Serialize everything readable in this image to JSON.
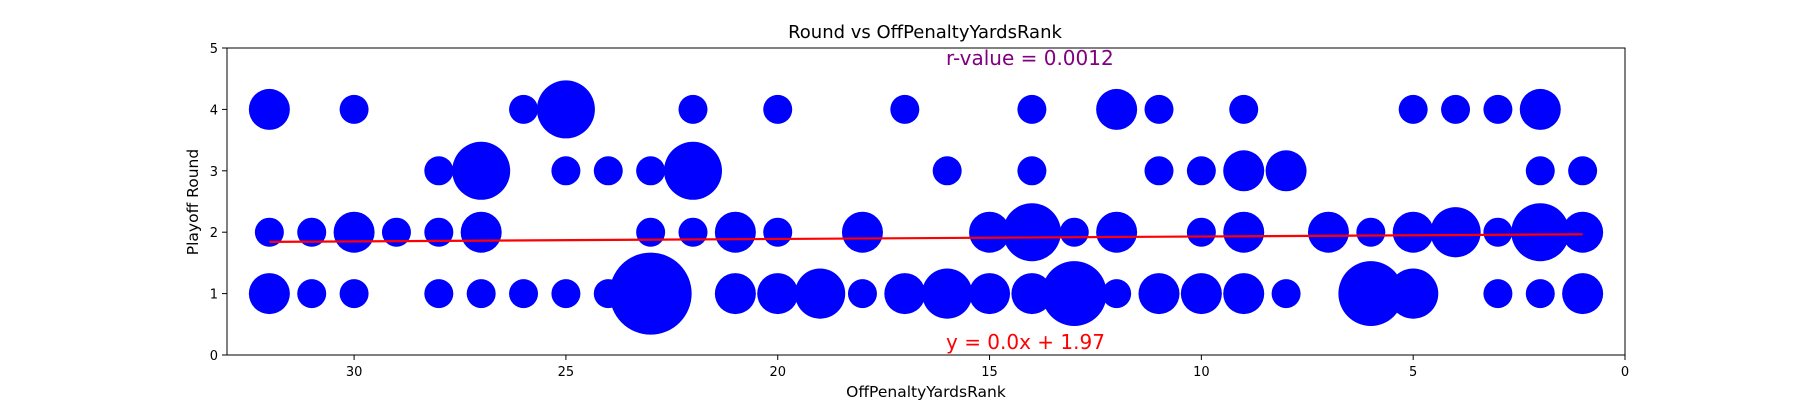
{
  "chart_data": {
    "type": "scatter",
    "title": "Round vs OffPenaltyYardsRank",
    "xlabel": "OffPenaltyYardsRank",
    "ylabel": "Playoff Round",
    "xlim": [
      33,
      0
    ],
    "ylim": [
      0,
      5
    ],
    "x_ticks": [
      30,
      25,
      20,
      15,
      10,
      5,
      0
    ],
    "y_ticks": [
      0,
      1,
      2,
      3,
      4,
      5
    ],
    "grid": false,
    "legend": "none",
    "point_color": "#0000ff",
    "fit_color": "#ff0000",
    "annotation_color_r": "#800080",
    "annotations": {
      "r_value": "r-value = 0.0012",
      "equation": "y = 0.0x + 1.97"
    },
    "fit_line": {
      "slope": -0.004,
      "intercept": 1.97,
      "x_range": [
        32,
        1
      ]
    },
    "points": [
      {
        "x": 32,
        "y": 4,
        "size": 2
      },
      {
        "x": 30,
        "y": 4,
        "size": 1
      },
      {
        "x": 26,
        "y": 4,
        "size": 1
      },
      {
        "x": 25,
        "y": 4,
        "size": 4
      },
      {
        "x": 22,
        "y": 4,
        "size": 1
      },
      {
        "x": 20,
        "y": 4,
        "size": 1
      },
      {
        "x": 17,
        "y": 4,
        "size": 1
      },
      {
        "x": 14,
        "y": 4,
        "size": 1
      },
      {
        "x": 12,
        "y": 4,
        "size": 2
      },
      {
        "x": 11,
        "y": 4,
        "size": 1
      },
      {
        "x": 9,
        "y": 4,
        "size": 1
      },
      {
        "x": 5,
        "y": 4,
        "size": 1
      },
      {
        "x": 4,
        "y": 4,
        "size": 1
      },
      {
        "x": 3,
        "y": 4,
        "size": 1
      },
      {
        "x": 2,
        "y": 4,
        "size": 2
      },
      {
        "x": 28,
        "y": 3,
        "size": 1
      },
      {
        "x": 27,
        "y": 3,
        "size": 4
      },
      {
        "x": 25,
        "y": 3,
        "size": 1
      },
      {
        "x": 24,
        "y": 3,
        "size": 1
      },
      {
        "x": 23,
        "y": 3,
        "size": 1
      },
      {
        "x": 22,
        "y": 3,
        "size": 4
      },
      {
        "x": 16,
        "y": 3,
        "size": 1
      },
      {
        "x": 14,
        "y": 3,
        "size": 1
      },
      {
        "x": 11,
        "y": 3,
        "size": 1
      },
      {
        "x": 10,
        "y": 3,
        "size": 1
      },
      {
        "x": 9,
        "y": 3,
        "size": 2
      },
      {
        "x": 8,
        "y": 3,
        "size": 2
      },
      {
        "x": 2,
        "y": 3,
        "size": 1
      },
      {
        "x": 1,
        "y": 3,
        "size": 1
      },
      {
        "x": 32,
        "y": 2,
        "size": 1
      },
      {
        "x": 31,
        "y": 2,
        "size": 1
      },
      {
        "x": 30,
        "y": 2,
        "size": 2
      },
      {
        "x": 29,
        "y": 2,
        "size": 1
      },
      {
        "x": 28,
        "y": 2,
        "size": 1
      },
      {
        "x": 27,
        "y": 2,
        "size": 2
      },
      {
        "x": 23,
        "y": 2,
        "size": 1
      },
      {
        "x": 22,
        "y": 2,
        "size": 1
      },
      {
        "x": 21,
        "y": 2,
        "size": 2
      },
      {
        "x": 20,
        "y": 2,
        "size": 1
      },
      {
        "x": 18,
        "y": 2,
        "size": 2
      },
      {
        "x": 15,
        "y": 2,
        "size": 2
      },
      {
        "x": 14,
        "y": 2,
        "size": 4
      },
      {
        "x": 13,
        "y": 2,
        "size": 1
      },
      {
        "x": 12,
        "y": 2,
        "size": 2
      },
      {
        "x": 10,
        "y": 2,
        "size": 1
      },
      {
        "x": 9,
        "y": 2,
        "size": 2
      },
      {
        "x": 7,
        "y": 2,
        "size": 2
      },
      {
        "x": 6,
        "y": 2,
        "size": 1
      },
      {
        "x": 5,
        "y": 2,
        "size": 2
      },
      {
        "x": 4,
        "y": 2,
        "size": 3
      },
      {
        "x": 3,
        "y": 2,
        "size": 1
      },
      {
        "x": 2,
        "y": 2,
        "size": 4
      },
      {
        "x": 1,
        "y": 2,
        "size": 2
      },
      {
        "x": 32,
        "y": 1,
        "size": 2
      },
      {
        "x": 31,
        "y": 1,
        "size": 1
      },
      {
        "x": 30,
        "y": 1,
        "size": 1
      },
      {
        "x": 28,
        "y": 1,
        "size": 1
      },
      {
        "x": 27,
        "y": 1,
        "size": 1
      },
      {
        "x": 26,
        "y": 1,
        "size": 1
      },
      {
        "x": 25,
        "y": 1,
        "size": 1
      },
      {
        "x": 24,
        "y": 1,
        "size": 1
      },
      {
        "x": 23,
        "y": 1,
        "size": 8
      },
      {
        "x": 21,
        "y": 1,
        "size": 2
      },
      {
        "x": 20,
        "y": 1,
        "size": 2
      },
      {
        "x": 19,
        "y": 1,
        "size": 3
      },
      {
        "x": 18,
        "y": 1,
        "size": 1
      },
      {
        "x": 17,
        "y": 1,
        "size": 2
      },
      {
        "x": 16,
        "y": 1,
        "size": 3
      },
      {
        "x": 15,
        "y": 1,
        "size": 2
      },
      {
        "x": 14,
        "y": 1,
        "size": 2
      },
      {
        "x": 13,
        "y": 1,
        "size": 5
      },
      {
        "x": 12,
        "y": 1,
        "size": 1
      },
      {
        "x": 11,
        "y": 1,
        "size": 2
      },
      {
        "x": 10,
        "y": 1,
        "size": 2
      },
      {
        "x": 9,
        "y": 1,
        "size": 2
      },
      {
        "x": 8,
        "y": 1,
        "size": 1
      },
      {
        "x": 6,
        "y": 1,
        "size": 5
      },
      {
        "x": 5,
        "y": 1,
        "size": 3
      },
      {
        "x": 3,
        "y": 1,
        "size": 1
      },
      {
        "x": 2,
        "y": 1,
        "size": 1
      },
      {
        "x": 1,
        "y": 1,
        "size": 2
      }
    ]
  }
}
